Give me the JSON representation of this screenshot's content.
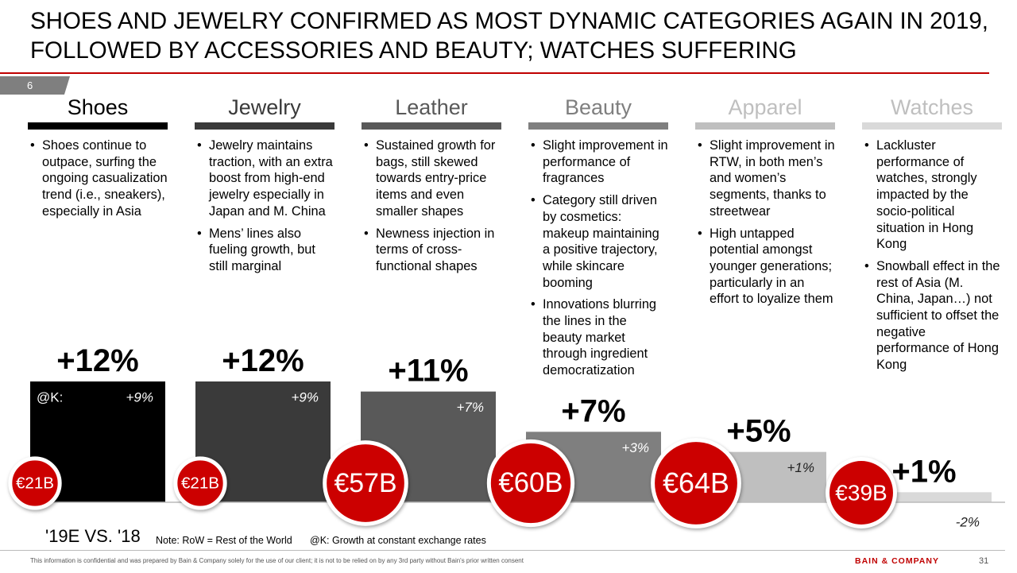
{
  "title": "SHOES AND JEWELRY CONFIRMED AS MOST DYNAMIC CATEGORIES AGAIN IN 2019, FOLLOWED BY ACCESSORIES AND BEAUTY; WATCHES SUFFERING",
  "page_tab": "6",
  "columns": [
    {
      "bullets": [
        "Shoes continue to outpace, surfing the ongoing casualization trend (i.e., sneakers), especially in Asia"
      ]
    },
    {
      "bullets": [
        "Jewelry maintains traction, with an extra boost from high-end jewelry especially in Japan and M. China",
        "Mens’ lines also fueling growth, but still marginal"
      ]
    },
    {
      "bullets": [
        "Sustained growth for bags, still skewed towards entry-price items and even smaller shapes",
        "Newness injection in terms of cross-functional shapes"
      ]
    },
    {
      "bullets": [
        "Slight improvement in performance of fragrances",
        "Category still driven by cosmetics: makeup maintaining a positive trajectory, while skincare booming",
        "Innovations blurring the lines in the beauty market through ingredient democratization"
      ]
    },
    {
      "bullets": [
        "Slight improvement in RTW, in both men’s and women’s segments, thanks to streetwear",
        "High untapped potential amongst younger generations; particularly in an effort to loyalize them"
      ]
    },
    {
      "bullets": [
        "Lackluster performance of watches, strongly impacted by the socio-political situation in Hong Kong",
        "Snowball effect in the rest of Asia (M. China, Japan…) not sufficient to offset the negative performance of Hong Kong"
      ]
    }
  ],
  "chart_data": {
    "type": "bar",
    "categories": [
      "Shoes",
      "Jewelry",
      "Leather",
      "Beauty",
      "Apparel",
      "Watches"
    ],
    "colors": [
      "#000000",
      "#3a3a3a",
      "#595959",
      "#7f7f7f",
      "#bfbfbf",
      "#d9d9d9"
    ],
    "header_colors": [
      "#000000",
      "#3a3a3a",
      "#595959",
      "#7f7f7f",
      "#bfbfbf",
      "#bfbfbf"
    ],
    "values": [
      12,
      12,
      11,
      7,
      5,
      1
    ],
    "value_labels": [
      "+12%",
      "+12%",
      "+11%",
      "+7%",
      "+5%",
      "+1%"
    ],
    "constant_fx": {
      "name": "@K:",
      "values": [
        9,
        9,
        7,
        3,
        1,
        -2
      ],
      "value_labels": [
        "+9%",
        "+9%",
        "+7%",
        "+3%",
        "+1%",
        "-2%"
      ]
    },
    "market_size": {
      "color": "#cc0000",
      "values": [
        21,
        21,
        57,
        60,
        64,
        39
      ],
      "value_labels": [
        "€21B",
        "€21B",
        "€57B",
        "€60B",
        "€64B",
        "€39B"
      ]
    },
    "ylim": [
      0,
      12
    ],
    "period_label": "'19E VS. '18"
  },
  "notes": [
    "Note: RoW = Rest of the World",
    "@K: Growth at constant exchange rates"
  ],
  "disclaimer": "This information is confidential and was prepared by Bain & Company solely for the use of our client; it is not to be relied on by any 3rd party without Bain's prior written consent",
  "brand": "BAIN & COMPANY",
  "slide_number": "31"
}
